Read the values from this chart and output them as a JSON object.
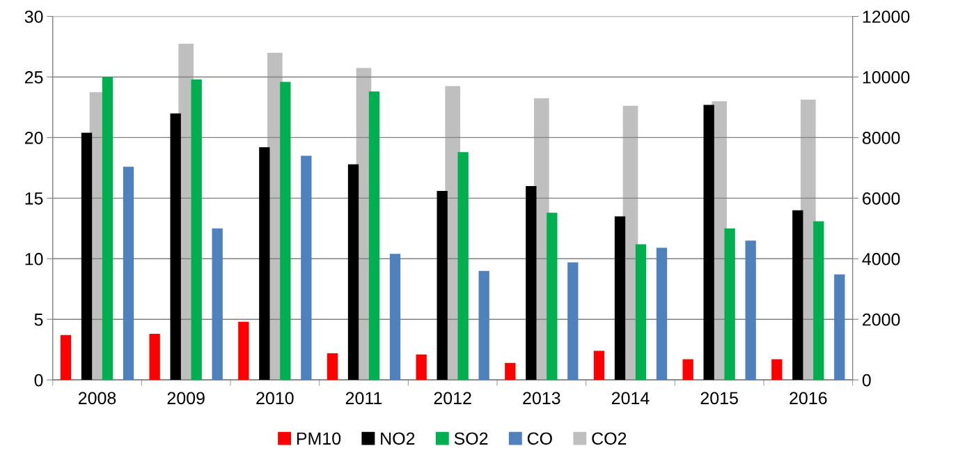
{
  "chart_data": {
    "type": "bar",
    "categories": [
      "2008",
      "2009",
      "2010",
      "2011",
      "2012",
      "2013",
      "2014",
      "2015",
      "2016"
    ],
    "series": [
      {
        "name": "PM10",
        "color": "#ff0000",
        "values": [
          3.7,
          3.8,
          4.8,
          2.2,
          2.1,
          1.4,
          2.4,
          1.7,
          1.7
        ]
      },
      {
        "name": "NO2",
        "color": "#000000",
        "values": [
          20.4,
          22.0,
          19.2,
          17.8,
          15.6,
          16.0,
          13.5,
          22.7,
          14.0
        ]
      },
      {
        "name": "SO2",
        "color": "#00b050",
        "values": [
          25.0,
          24.8,
          24.6,
          23.8,
          18.8,
          13.8,
          11.2,
          12.5,
          13.1
        ]
      },
      {
        "name": "CO",
        "color": "#4f81bd",
        "values": [
          17.6,
          12.5,
          18.5,
          10.4,
          9.0,
          9.7,
          10.9,
          11.5,
          8.7
        ]
      },
      {
        "name": "CO2",
        "color": "#bfbfbf",
        "axis": "y2",
        "values": [
          9500,
          11100,
          10800,
          10300,
          9700,
          9300,
          9050,
          9200,
          9250
        ]
      }
    ],
    "ylim": [
      0,
      30
    ],
    "yticks": [
      0,
      5,
      10,
      15,
      20,
      25,
      30
    ],
    "y2lim": [
      0,
      12000
    ],
    "y2ticks": [
      0,
      2000,
      4000,
      6000,
      8000,
      10000,
      12000
    ],
    "grid": "y",
    "legend": "bottom"
  }
}
